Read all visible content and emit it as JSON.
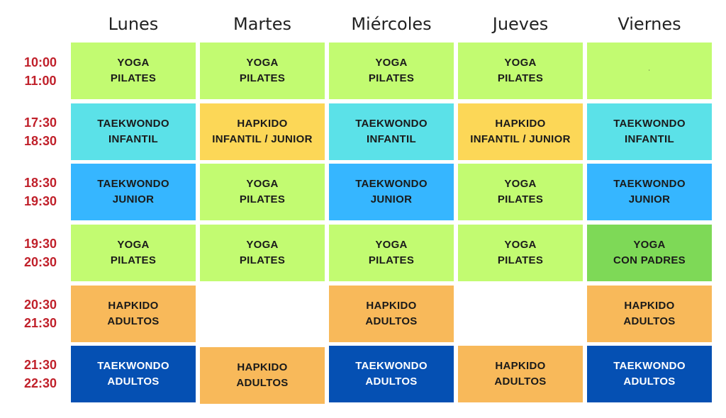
{
  "days": [
    "Lunes",
    "Martes",
    "Miércoles",
    "Jueves",
    "Viernes"
  ],
  "times": [
    {
      "start": "10:00",
      "end": "11:00"
    },
    {
      "start": "17:30",
      "end": "18:30"
    },
    {
      "start": "18:30",
      "end": "19:30"
    },
    {
      "start": "19:30",
      "end": "20:30"
    },
    {
      "start": "20:30",
      "end": "21:30"
    },
    {
      "start": "21:30",
      "end": "22:30"
    }
  ],
  "rows": [
    [
      {
        "l1": "YOGA",
        "l2": "PILATES",
        "kind": "yoga"
      },
      {
        "l1": "YOGA",
        "l2": "PILATES",
        "kind": "yoga"
      },
      {
        "l1": "YOGA",
        "l2": "PILATES",
        "kind": "yoga"
      },
      {
        "l1": "YOGA",
        "l2": "PILATES",
        "kind": "yoga"
      },
      {
        "l1": "",
        "l2": "",
        "kind": "yoga"
      }
    ],
    [
      {
        "l1": "TAEKWONDO",
        "l2": "INFANTIL",
        "kind": "tkinf"
      },
      {
        "l1": "HAPKIDO",
        "l2": "INFANTIL / JUNIOR",
        "kind": "hapinf"
      },
      {
        "l1": "TAEKWONDO",
        "l2": "INFANTIL",
        "kind": "tkinf"
      },
      {
        "l1": "HAPKIDO",
        "l2": "INFANTIL / JUNIOR",
        "kind": "hapinf"
      },
      {
        "l1": "TAEKWONDO",
        "l2": "INFANTIL",
        "kind": "tkinf"
      }
    ],
    [
      {
        "l1": "TAEKWONDO",
        "l2": "JUNIOR",
        "kind": "tkjr"
      },
      {
        "l1": "YOGA",
        "l2": "PILATES",
        "kind": "yoga"
      },
      {
        "l1": "TAEKWONDO",
        "l2": "JUNIOR",
        "kind": "tkjr"
      },
      {
        "l1": "YOGA",
        "l2": "PILATES",
        "kind": "yoga"
      },
      {
        "l1": "TAEKWONDO",
        "l2": "JUNIOR",
        "kind": "tkjr"
      }
    ],
    [
      {
        "l1": "YOGA",
        "l2": "PILATES",
        "kind": "yoga"
      },
      {
        "l1": "YOGA",
        "l2": "PILATES",
        "kind": "yoga"
      },
      {
        "l1": "YOGA",
        "l2": "PILATES",
        "kind": "yoga"
      },
      {
        "l1": "YOGA",
        "l2": "PILATES",
        "kind": "yoga"
      },
      {
        "l1": "YOGA",
        "l2": "CON PADRES",
        "kind": "yogapad"
      }
    ],
    [
      {
        "l1": "HAPKIDO",
        "l2": "ADULTOS",
        "kind": "hapad"
      },
      {
        "l1": "",
        "l2": "",
        "kind": "empty"
      },
      {
        "l1": "HAPKIDO",
        "l2": "ADULTOS",
        "kind": "hapad"
      },
      {
        "l1": "",
        "l2": "",
        "kind": "empty"
      },
      {
        "l1": "HAPKIDO",
        "l2": "ADULTOS",
        "kind": "hapad"
      }
    ],
    [
      {
        "l1": "TAEKWONDO",
        "l2": "ADULTOS",
        "kind": "tkad"
      },
      {
        "l1": "HAPKIDO",
        "l2": "ADULTOS",
        "kind": "hapad"
      },
      {
        "l1": "TAEKWONDO",
        "l2": "ADULTOS",
        "kind": "tkad"
      },
      {
        "l1": "HAPKIDO",
        "l2": "ADULTOS",
        "kind": "hapad"
      },
      {
        "l1": "TAEKWONDO",
        "l2": "ADULTOS",
        "kind": "tkad"
      }
    ]
  ],
  "colors": {
    "yoga": "#c2fb71",
    "tkinf": "#5be1e8",
    "hapinf": "#fcd757",
    "tkjr": "#36b6ff",
    "yogapad": "#7ed957",
    "hapad": "#f8b95a",
    "tkad": "#0550b3",
    "time_text": "#c0202a"
  }
}
